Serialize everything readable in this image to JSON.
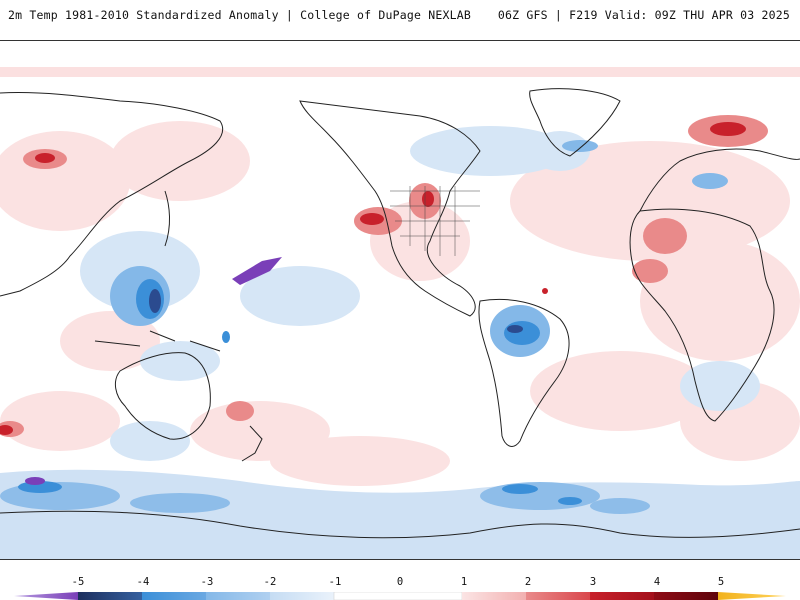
{
  "header": {
    "title": "2m Temp 1981-2010 Standardized Anomaly | College of DuPage NEXLAB",
    "run_info": "06Z GFS | F219 Valid: 09Z THU APR 03 2025"
  },
  "legend": {
    "ticks": [
      "-5",
      "-4",
      "-3",
      "-2",
      "-1",
      "0",
      "1",
      "2",
      "3",
      "4",
      "5"
    ],
    "colors": [
      "#7a3fb8",
      "#2b4b8f",
      "#3b8fd8",
      "#84b8e8",
      "#c5dcf3",
      "#ffffff",
      "#ffffff",
      "#f7c8c8",
      "#e98a8a",
      "#c8212b",
      "#8f0c16",
      "#f2b21c"
    ]
  },
  "palette": {
    "strong_cold": "#7a3fb8",
    "cold": "#3b8fd8",
    "light_cold": "#c5dcf3",
    "light_warm": "#f7c8c8",
    "warm": "#e98a8a",
    "hot": "#c8212b",
    "coast": "#222222"
  }
}
